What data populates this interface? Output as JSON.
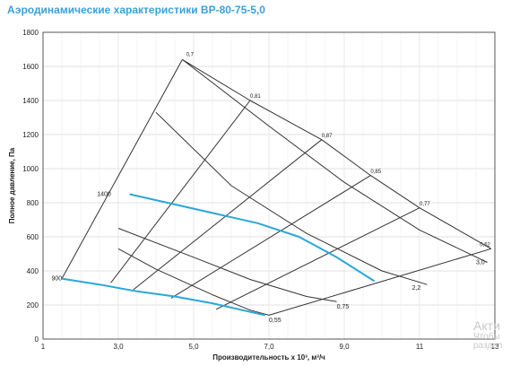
{
  "title": "Аэродинамические характеристики ВР-80-75-5,0",
  "watermark": {
    "line1": "Акти",
    "line2": "Чтобы",
    "line3": "раздел"
  },
  "chart_data": {
    "type": "line",
    "xlabel": "Производительность х 10³, м³/ч",
    "ylabel": "Полное давление, Па",
    "xlim": [
      1,
      13
    ],
    "ylim": [
      0,
      1800
    ],
    "x_ticks": [
      "1",
      "3,0",
      "5,0",
      "7,0",
      "9,0",
      "11",
      "13"
    ],
    "x_tick_values": [
      1,
      3,
      5,
      7,
      9,
      11,
      13
    ],
    "y_ticks": [
      0,
      200,
      400,
      600,
      800,
      1000,
      1200,
      1400,
      1600,
      1800
    ],
    "grid": true,
    "colors": {
      "speed_curve": "#29a7d9",
      "grid": "#d9d9d9",
      "lines": "#333333"
    },
    "speed_curves": [
      {
        "label": "1400",
        "x": [
          3.3,
          4.5,
          5.5,
          6.7,
          7.8,
          8.8,
          9.8
        ],
        "y": [
          850,
          790,
          740,
          680,
          600,
          480,
          340
        ]
      },
      {
        "label": "900",
        "x": [
          1.5,
          2.5,
          3.5,
          4.5,
          5.5,
          6.2,
          6.9
        ],
        "y": [
          355,
          320,
          280,
          250,
          210,
          175,
          140
        ]
      }
    ],
    "efficiency_rays": [
      {
        "label": "0,7",
        "x": [
          1.5,
          4.7
        ],
        "y": [
          355,
          1640
        ]
      },
      {
        "label": "0,81",
        "x": [
          2.8,
          6.5
        ],
        "y": [
          330,
          1400
        ]
      },
      {
        "label": "0,87",
        "x": [
          3.4,
          8.4
        ],
        "y": [
          290,
          1170
        ]
      },
      {
        "label": "0,85",
        "x": [
          4.4,
          9.7
        ],
        "y": [
          240,
          960
        ]
      },
      {
        "label": "0,77",
        "x": [
          5.6,
          11.0
        ],
        "y": [
          175,
          770
        ]
      },
      {
        "label": "0,62",
        "x": [
          7.0,
          12.9
        ],
        "y": [
          140,
          530
        ]
      }
    ],
    "ray_label_pos": [
      {
        "label": "0,7",
        "x": 4.8,
        "y": 1660
      },
      {
        "label": "0,81",
        "x": 6.5,
        "y": 1415
      },
      {
        "label": "0,87",
        "x": 8.4,
        "y": 1185
      },
      {
        "label": "0,85",
        "x": 9.7,
        "y": 975
      },
      {
        "label": "0,77",
        "x": 11.0,
        "y": 785
      },
      {
        "label": "0,62",
        "x": 12.6,
        "y": 545
      }
    ],
    "speed_label_pos": [
      {
        "label": "1400",
        "x": 2.9,
        "y": 850
      },
      {
        "label": "900",
        "x": 1.6,
        "y": 355
      }
    ],
    "resistance_curves": [
      {
        "label": "0,55",
        "x": [
          3.0,
          4.0,
          5.5,
          6.5,
          7.0
        ],
        "y": [
          530,
          410,
          260,
          170,
          140
        ]
      },
      {
        "label": "0,75",
        "x": [
          3.0,
          5.0,
          6.5,
          8.0,
          8.8
        ],
        "y": [
          650,
          480,
          350,
          250,
          220
        ]
      },
      {
        "label": "2,2",
        "x": [
          4.0,
          6.0,
          8.0,
          10.0,
          11.2
        ],
        "y": [
          1330,
          900,
          620,
          400,
          320
        ]
      },
      {
        "label": "3,0",
        "x": [
          4.7,
          7.0,
          9.0,
          11.0,
          12.8
        ],
        "y": [
          1640,
          1250,
          920,
          640,
          450
        ]
      }
    ],
    "resistance_label_pos": [
      {
        "label": "0,55",
        "x": 7.0,
        "y": 100
      },
      {
        "label": "0,75",
        "x": 8.8,
        "y": 180
      },
      {
        "label": "2,2",
        "x": 10.8,
        "y": 290
      },
      {
        "label": "3,0",
        "x": 12.5,
        "y": 440
      }
    ]
  }
}
